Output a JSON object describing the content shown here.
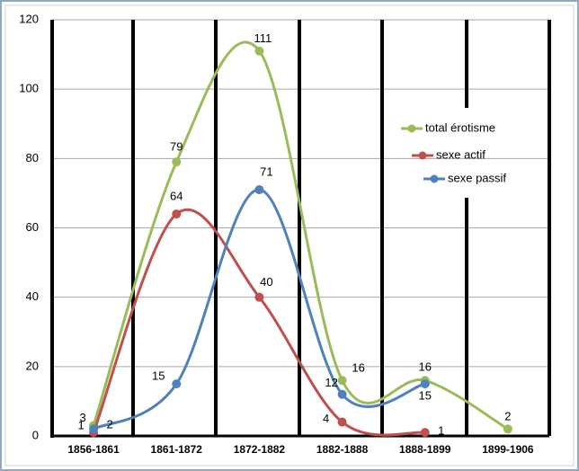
{
  "chart_data": {
    "type": "line",
    "categories": [
      "1856-1861",
      "1861-1872",
      "1872-1882",
      "1882-1888",
      "1888-1899",
      "1899-1906"
    ],
    "series": [
      {
        "name": "total érotisme",
        "color": "#9bbb59",
        "values": [
          3,
          79,
          111,
          16,
          16,
          2
        ]
      },
      {
        "name": "sexe actif",
        "color": "#c0504d",
        "values": [
          1,
          64,
          40,
          4,
          1,
          null
        ]
      },
      {
        "name": "sexe passif",
        "color": "#4f81bd",
        "values": [
          2,
          15,
          71,
          12,
          15,
          null
        ]
      }
    ],
    "ylim": [
      0,
      120
    ],
    "yticks": [
      0,
      20,
      40,
      60,
      80,
      100,
      120
    ],
    "grid": true,
    "smooth": true,
    "legend": "right"
  }
}
